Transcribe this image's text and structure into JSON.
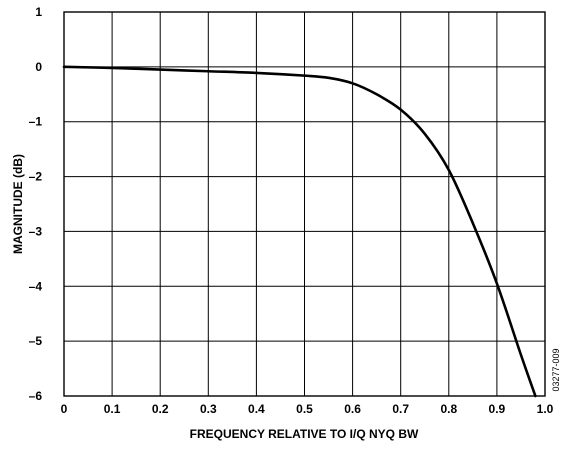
{
  "chart_data": {
    "type": "line",
    "xlabel": "FREQUENCY RELATIVE TO I/Q NYQ BW",
    "ylabel": "MAGNITUDE (dB)",
    "xlim": [
      0,
      1.0
    ],
    "ylim": [
      -6,
      1
    ],
    "x_ticks": [
      0,
      0.1,
      0.2,
      0.3,
      0.4,
      0.5,
      0.6,
      0.7,
      0.8,
      0.9,
      1.0
    ],
    "x_tick_labels": [
      "0",
      "0.1",
      "0.2",
      "0.3",
      "0.4",
      "0.5",
      "0.6",
      "0.7",
      "0.8",
      "0.9",
      "1.0"
    ],
    "y_ticks": [
      1,
      0,
      -1,
      -2,
      -3,
      -4,
      -5,
      -6
    ],
    "y_tick_labels": [
      "1",
      "0",
      "–1",
      "–2",
      "–3",
      "–4",
      "–5",
      "–6"
    ],
    "grid": true,
    "series": [
      {
        "x": [
          0,
          0.1,
          0.2,
          0.3,
          0.4,
          0.5,
          0.55,
          0.6,
          0.65,
          0.7,
          0.75,
          0.8,
          0.85,
          0.9,
          0.95,
          0.98
        ],
        "y": [
          0,
          -0.02,
          -0.05,
          -0.08,
          -0.11,
          -0.16,
          -0.2,
          -0.3,
          -0.5,
          -0.78,
          -1.22,
          -1.88,
          -2.85,
          -3.95,
          -5.25,
          -6.0
        ]
      }
    ],
    "annotation": "03277-009"
  }
}
